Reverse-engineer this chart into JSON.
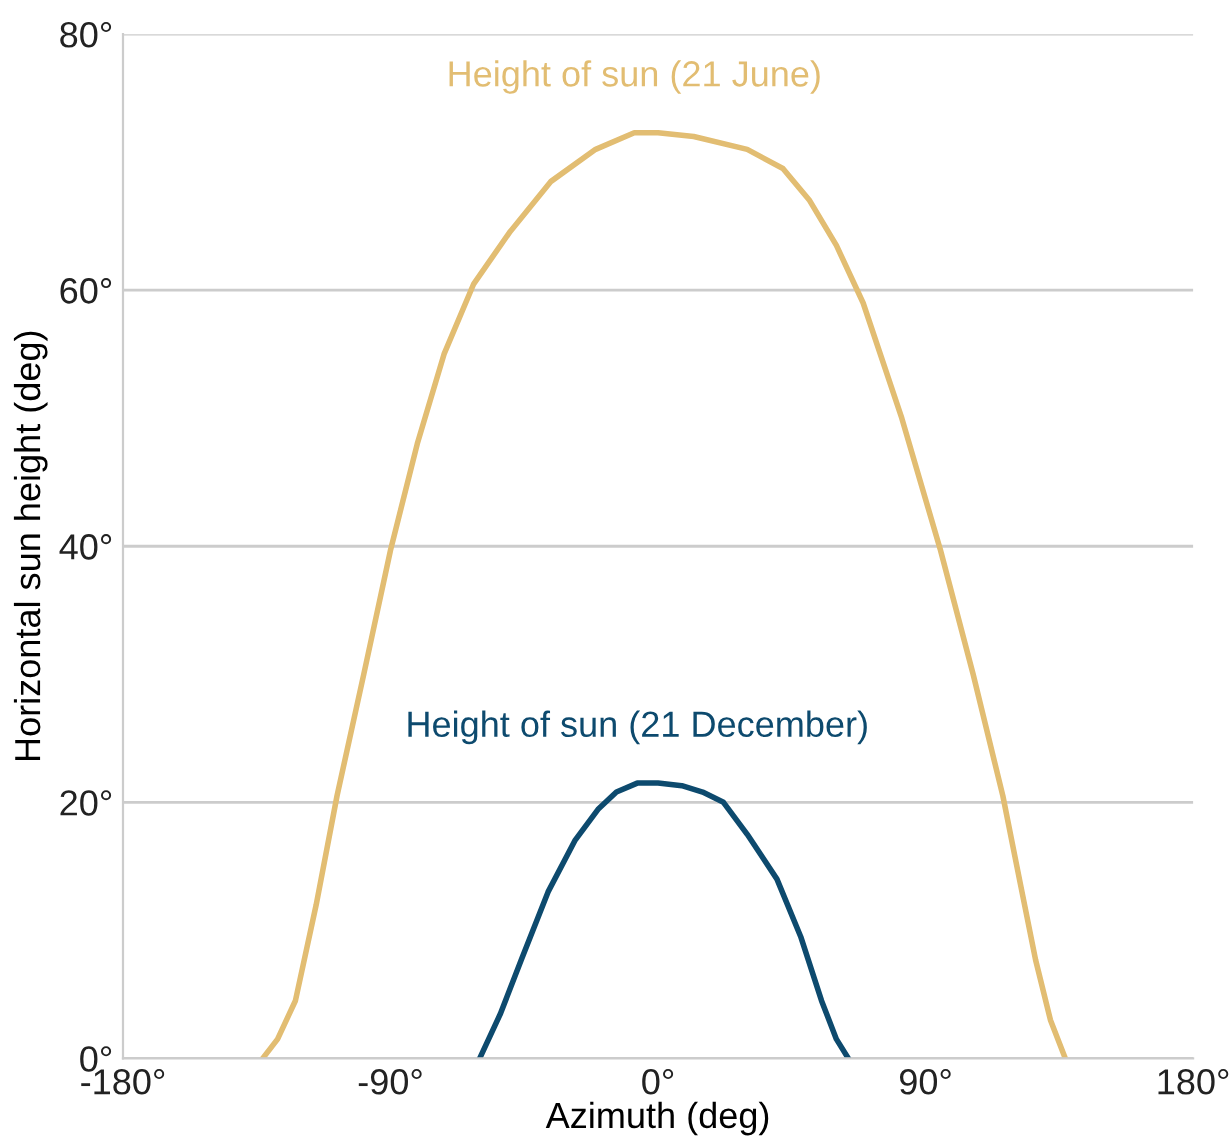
{
  "chart_data": {
    "type": "line",
    "xlabel": "Azimuth (deg)",
    "ylabel": "Horizontal sun height (deg)",
    "xlim": [
      -180,
      180
    ],
    "ylim": [
      0,
      80
    ],
    "xticks": [
      {
        "value": -180,
        "label": "-180°"
      },
      {
        "value": -90,
        "label": "-90°"
      },
      {
        "value": 0,
        "label": "0°"
      },
      {
        "value": 90,
        "label": "90°"
      },
      {
        "value": 180,
        "label": "180°"
      }
    ],
    "yticks": [
      {
        "value": 0,
        "label": "0°"
      },
      {
        "value": 20,
        "label": "20°"
      },
      {
        "value": 40,
        "label": "40°"
      },
      {
        "value": 60,
        "label": "60°"
      },
      {
        "value": 80,
        "label": "80°"
      }
    ],
    "grid": "y",
    "legend": false,
    "marker": "none",
    "line_style": "solid",
    "series": [
      {
        "name": "Height of sun (21 June)",
        "color": "#e2bd72",
        "x": [
          -133,
          -128,
          -122,
          -115,
          -108,
          -99,
          -90,
          -81,
          -72,
          -62,
          -50,
          -36,
          -21,
          -8,
          0,
          12,
          30,
          42,
          51,
          60,
          69,
          82,
          95,
          106,
          116,
          122,
          127,
          132,
          137
        ],
        "values": [
          0,
          1.5,
          4.5,
          12,
          20.5,
          30,
          39.7,
          48,
          55,
          60.5,
          64.5,
          68.5,
          71,
          72.3,
          72.3,
          72,
          71,
          69.5,
          67,
          63.5,
          59,
          50,
          39.7,
          30,
          20.5,
          13.5,
          7.7,
          3,
          0
        ]
      },
      {
        "name": "Height of sun (21 December)",
        "color": "#0d4a6e",
        "x": [
          -60,
          -53,
          -46,
          -37,
          -28,
          -20,
          -14,
          -7,
          0,
          8,
          15,
          22,
          30,
          40,
          48,
          55,
          60,
          64
        ],
        "values": [
          0,
          3.5,
          7.7,
          13,
          17,
          19.5,
          20.8,
          21.5,
          21.5,
          21.3,
          20.8,
          20,
          17.5,
          14,
          9.5,
          4.5,
          1.5,
          0
        ]
      }
    ]
  }
}
